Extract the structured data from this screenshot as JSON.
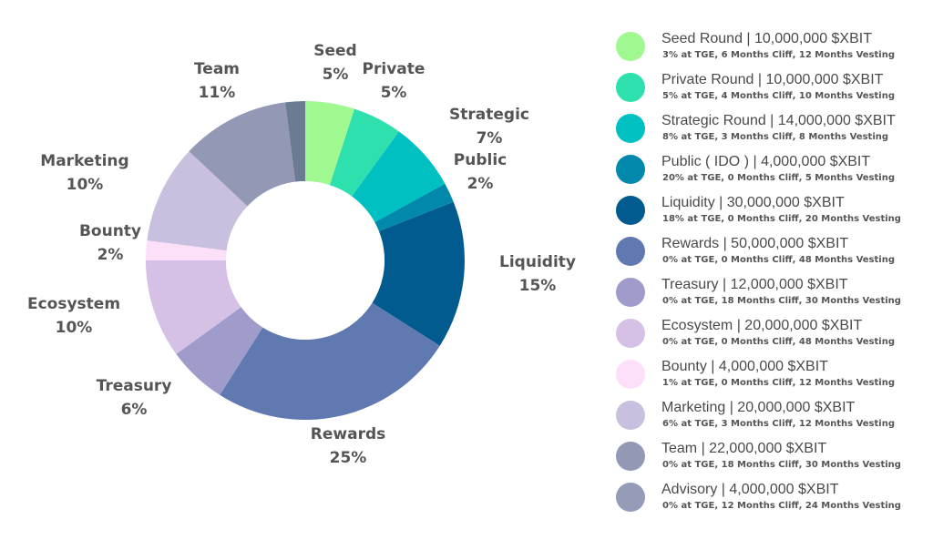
{
  "chart_data": {
    "type": "pie",
    "donut": true,
    "legend_position": "right",
    "slices": [
      {
        "label": "Seed",
        "value": 5,
        "value_label": "5%",
        "color": "#a0f990",
        "legend_title": "Seed Round | 10,000,000 $XBIT",
        "legend_sub": "3% at TGE, 6 Months Cliff, 12 Months Vesting"
      },
      {
        "label": "Private",
        "value": 5,
        "value_label": "5%",
        "color": "#2ee0ad",
        "legend_title": "Private Round | 10,000,000 $XBIT",
        "legend_sub": "5% at TGE, 4 Months Cliff, 10 Months Vesting"
      },
      {
        "label": "Strategic",
        "value": 7,
        "value_label": "7%",
        "color": "#00c0c2",
        "legend_title": "Strategic Round | 14,000,000 $XBIT",
        "legend_sub": "8% at TGE, 3 Months Cliff, 8 Months Vesting"
      },
      {
        "label": "Public",
        "value": 2,
        "value_label": "2%",
        "color": "#0288ab",
        "legend_title": "Public ( IDO ) | 4,000,000 $XBIT",
        "legend_sub": "20% at TGE, 0 Months Cliff, 5 Months Vesting"
      },
      {
        "label": "Liquidity",
        "value": 15,
        "value_label": "15%",
        "color": "#025b8f",
        "legend_title": "Liquidity | 30,000,000 $XBIT",
        "legend_sub": "18% at TGE, 0 Months Cliff, 20 Months Vesting"
      },
      {
        "label": "Rewards",
        "value": 25,
        "value_label": "25%",
        "color": "#6179b1",
        "legend_title": "Rewards | 50,000,000 $XBIT",
        "legend_sub": "0% at TGE, 0 Months Cliff, 48 Months Vesting"
      },
      {
        "label": "Treasury",
        "value": 6,
        "value_label": "6%",
        "color": "#9f9ccc",
        "legend_title": "Treasury | 12,000,000 $XBIT",
        "legend_sub": "0% at TGE, 18 Months Cliff, 30 Months Vesting"
      },
      {
        "label": "Ecosystem",
        "value": 10,
        "value_label": "10%",
        "color": "#d5c0e6",
        "legend_title": "Ecosystem | 20,000,000 $XBIT",
        "legend_sub": "0% at TGE, 0 Months Cliff, 48 Months Vesting"
      },
      {
        "label": "Bounty",
        "value": 2,
        "value_label": "2%",
        "color": "#fddffa",
        "legend_title": "Bounty | 4,000,000 $XBIT",
        "legend_sub": "1% at TGE, 0 Months Cliff, 12 Months Vesting"
      },
      {
        "label": "Marketing",
        "value": 10,
        "value_label": "10%",
        "color": "#c9bfdf",
        "legend_title": "Marketing | 20,000,000 $XBIT",
        "legend_sub": "6% at TGE, 3 Months Cliff, 12 Months Vesting"
      },
      {
        "label": "Team",
        "value": 11,
        "value_label": "11%",
        "color": "#9398b4",
        "legend_title": "Team | 22,000,000 $XBIT",
        "legend_sub": "0% at TGE, 18 Months Cliff, 30 Months Vesting"
      },
      {
        "label": "Advisory",
        "value": 2,
        "value_label": "",
        "color": "#6b7b92",
        "legend_color": "#959cb8",
        "legend_title": "Advisory | 4,000,000 $XBIT",
        "legend_sub": "0% at TGE, 12 Months Cliff, 24 Months Vesting"
      }
    ]
  }
}
